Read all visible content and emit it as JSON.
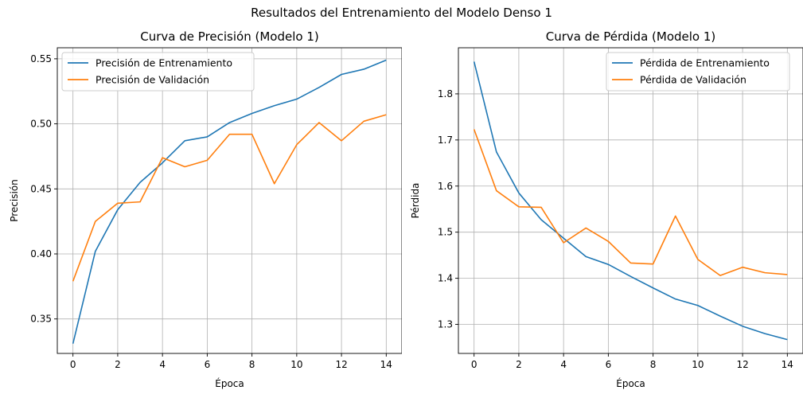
{
  "figure": {
    "suptitle": "Resultados del Entrenamiento del Modelo Denso 1",
    "colors": {
      "train": "#1f77b4",
      "val": "#ff7f0e",
      "grid": "#b0b0b0"
    }
  },
  "chart_data": [
    {
      "type": "line",
      "title": "Curva de Precisión (Modelo 1)",
      "xlabel": "Época",
      "ylabel": "Precisión",
      "xlim": [
        -0.7,
        14.7
      ],
      "ylim": [
        0.3235,
        0.5585
      ],
      "xticks": [
        0,
        2,
        4,
        6,
        8,
        10,
        12,
        14
      ],
      "yticks": [
        0.35,
        0.4,
        0.45,
        0.5,
        0.55
      ],
      "ytick_labels": [
        "0.35",
        "0.40",
        "0.45",
        "0.50",
        "0.55"
      ],
      "grid": true,
      "legend_position": "upper-left",
      "x": [
        0,
        1,
        2,
        3,
        4,
        5,
        6,
        7,
        8,
        9,
        10,
        11,
        12,
        13,
        14
      ],
      "series": [
        {
          "name": "Precisión de Entrenamiento",
          "color": "#1f77b4",
          "values": [
            0.331,
            0.402,
            0.434,
            0.455,
            0.47,
            0.487,
            0.49,
            0.501,
            0.508,
            0.514,
            0.519,
            0.528,
            0.538,
            0.542,
            0.549
          ]
        },
        {
          "name": "Precisión de Validación",
          "color": "#ff7f0e",
          "values": [
            0.379,
            0.425,
            0.439,
            0.44,
            0.474,
            0.467,
            0.472,
            0.492,
            0.492,
            0.454,
            0.484,
            0.501,
            0.487,
            0.502,
            0.507
          ]
        }
      ]
    },
    {
      "type": "line",
      "title": "Curva de Pérdida (Modelo 1)",
      "xlabel": "Época",
      "ylabel": "Pérdida",
      "xlim": [
        -0.7,
        14.7
      ],
      "ylim": [
        1.237,
        1.9
      ],
      "xticks": [
        0,
        2,
        4,
        6,
        8,
        10,
        12,
        14
      ],
      "yticks": [
        1.3,
        1.4,
        1.5,
        1.6,
        1.7,
        1.8
      ],
      "ytick_labels": [
        "1.3",
        "1.4",
        "1.5",
        "1.6",
        "1.7",
        "1.8"
      ],
      "grid": true,
      "legend_position": "upper-right",
      "x": [
        0,
        1,
        2,
        3,
        4,
        5,
        6,
        7,
        8,
        9,
        10,
        11,
        12,
        13,
        14
      ],
      "series": [
        {
          "name": "Pérdida de Entrenamiento",
          "color": "#1f77b4",
          "values": [
            1.87,
            1.674,
            1.585,
            1.527,
            1.487,
            1.447,
            1.43,
            1.404,
            1.379,
            1.355,
            1.341,
            1.318,
            1.296,
            1.28,
            1.267
          ]
        },
        {
          "name": "Pérdida de Validación",
          "color": "#ff7f0e",
          "values": [
            1.723,
            1.59,
            1.555,
            1.554,
            1.477,
            1.509,
            1.48,
            1.433,
            1.431,
            1.535,
            1.441,
            1.406,
            1.424,
            1.412,
            1.408
          ]
        }
      ]
    }
  ]
}
